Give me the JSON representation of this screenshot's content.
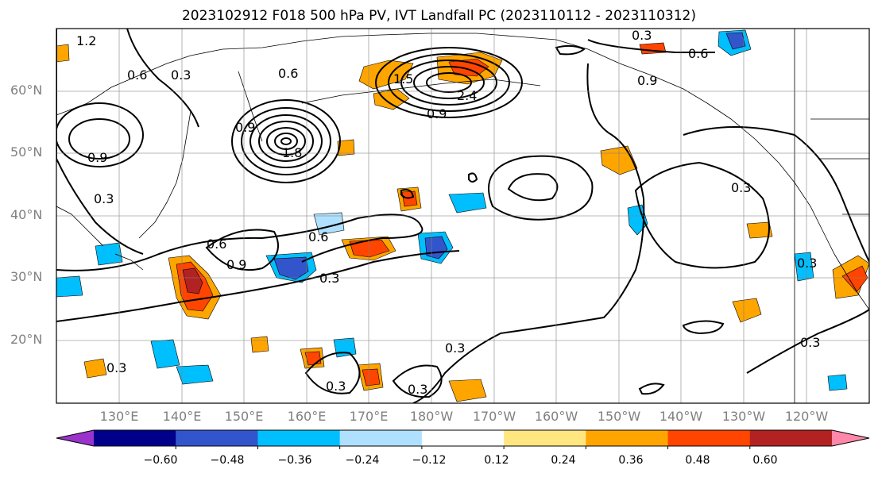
{
  "title": "2023102912 F018 500 hPa PV, IVT Landfall PC (2023110112 - 2023110312)",
  "lat_labels": [
    "60°N",
    "50°N",
    "40°N",
    "30°N",
    "20°N"
  ],
  "lon_labels": [
    "130°E",
    "140°E",
    "150°E",
    "160°E",
    "170°E",
    "180°W",
    "170°W",
    "160°W",
    "150°W",
    "140°W",
    "130°W",
    "120°W"
  ],
  "contour_labels": [
    "1.2",
    "0.6",
    "0.3",
    "0.6",
    "0.9",
    "1.5",
    "2.4",
    "1.8",
    "0.9",
    "0.3",
    "0.6",
    "0.9",
    "0.3",
    "0.6",
    "0.9",
    "0.3",
    "0.6",
    "0.9",
    "0.3",
    "0.3",
    "0.3",
    "0.3",
    "0.3",
    "0.3",
    "0.3"
  ],
  "colorbar": {
    "ticks": [
      "−0.60",
      "−0.48",
      "−0.36",
      "−0.24",
      "−0.12",
      "0.12",
      "0.24",
      "0.36",
      "0.48",
      "0.60"
    ],
    "colors": [
      "#9933cc",
      "#00008b",
      "#3355cc",
      "#00bfff",
      "#b0e0ff",
      "#ffffff",
      "#ffe680",
      "#ffa500",
      "#ff4500",
      "#b22222",
      "#ff88aa"
    ]
  }
}
